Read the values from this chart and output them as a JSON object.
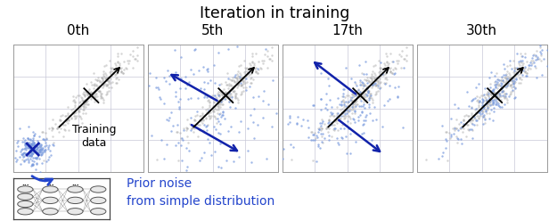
{
  "title": "Iteration in training",
  "iterations": [
    "0th",
    "5th",
    "17th",
    "30th"
  ],
  "bg_color": "#ffffff",
  "grid_color": "#c8c8d8",
  "training_color": "#aaaaaa",
  "prior_color": "#7799dd",
  "prior_color_dark": "#2233aa",
  "arrow_color": "#1122aa",
  "seed": 42,
  "n_training": 300,
  "n_prior": 200,
  "label_training": "Training\ndata",
  "label_prior_line1": "Prior noise",
  "label_prior_line2": "from simple distribution",
  "prior_label_color": "#2244cc"
}
